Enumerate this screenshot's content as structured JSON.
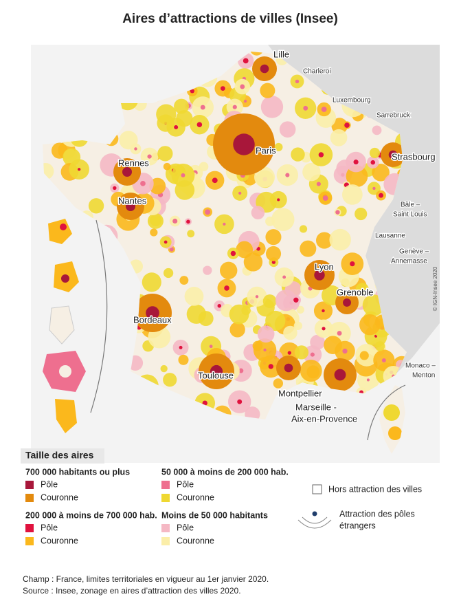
{
  "title": "Aires d’attractions de villes (Insee)",
  "map": {
    "cities": {
      "lille": "Lille",
      "charleroi": "Charleroi",
      "luxembourg": "Luxembourg",
      "sarrebruck": "Sarrebruck",
      "paris": "Paris",
      "strasbourg": "Strasbourg",
      "rennes": "Rennes",
      "nantes": "Nantes",
      "bale": [
        "Bâle –",
        "Saint Louis"
      ],
      "lausanne": "Lausanne",
      "geneve": [
        "Genève –",
        "Annemasse"
      ],
      "lyon": "Lyon",
      "grenoble": "Grenoble",
      "bordeaux": "Bordeaux",
      "toulouse": "Toulouse",
      "montpellier": "Montpellier",
      "marseille": [
        "Marseille -",
        "Aix-en-Provence"
      ],
      "monaco": [
        "Monaco –",
        "Menton"
      ]
    },
    "credit": "© IGN-Insee 2020"
  },
  "legend": {
    "title": "Taille des aires",
    "groups": [
      {
        "title": "700 000 habitants ou plus",
        "items": [
          {
            "label": "Pôle",
            "color": "#a8173a"
          },
          {
            "label": "Couronne",
            "color": "#e38a0e"
          }
        ]
      },
      {
        "title": "50 000 à moins de 200 000 hab.",
        "items": [
          {
            "label": "Pôle",
            "color": "#ee6f8f"
          },
          {
            "label": "Couronne",
            "color": "#efd832"
          }
        ]
      },
      {
        "title": "200 000 à moins de 700 000 hab.",
        "items": [
          {
            "label": "Pôle",
            "color": "#e0123e"
          },
          {
            "label": "Couronne",
            "color": "#fbb81c"
          }
        ]
      },
      {
        "title": "Moins de 50 000 habitants",
        "items": [
          {
            "label": "Pôle",
            "color": "#f5b8c4"
          },
          {
            "label": "Couronne",
            "color": "#fbeea9"
          }
        ]
      }
    ],
    "outside": "Hors attraction des villes",
    "foreign": [
      "Attraction des pôles",
      "étrangers"
    ]
  },
  "footer": [
    "Champ : France, limites territoriales en vigueur au 1er janvier 2020.",
    "Source : Insee, zonage en aires d’attraction des villes 2020."
  ]
}
